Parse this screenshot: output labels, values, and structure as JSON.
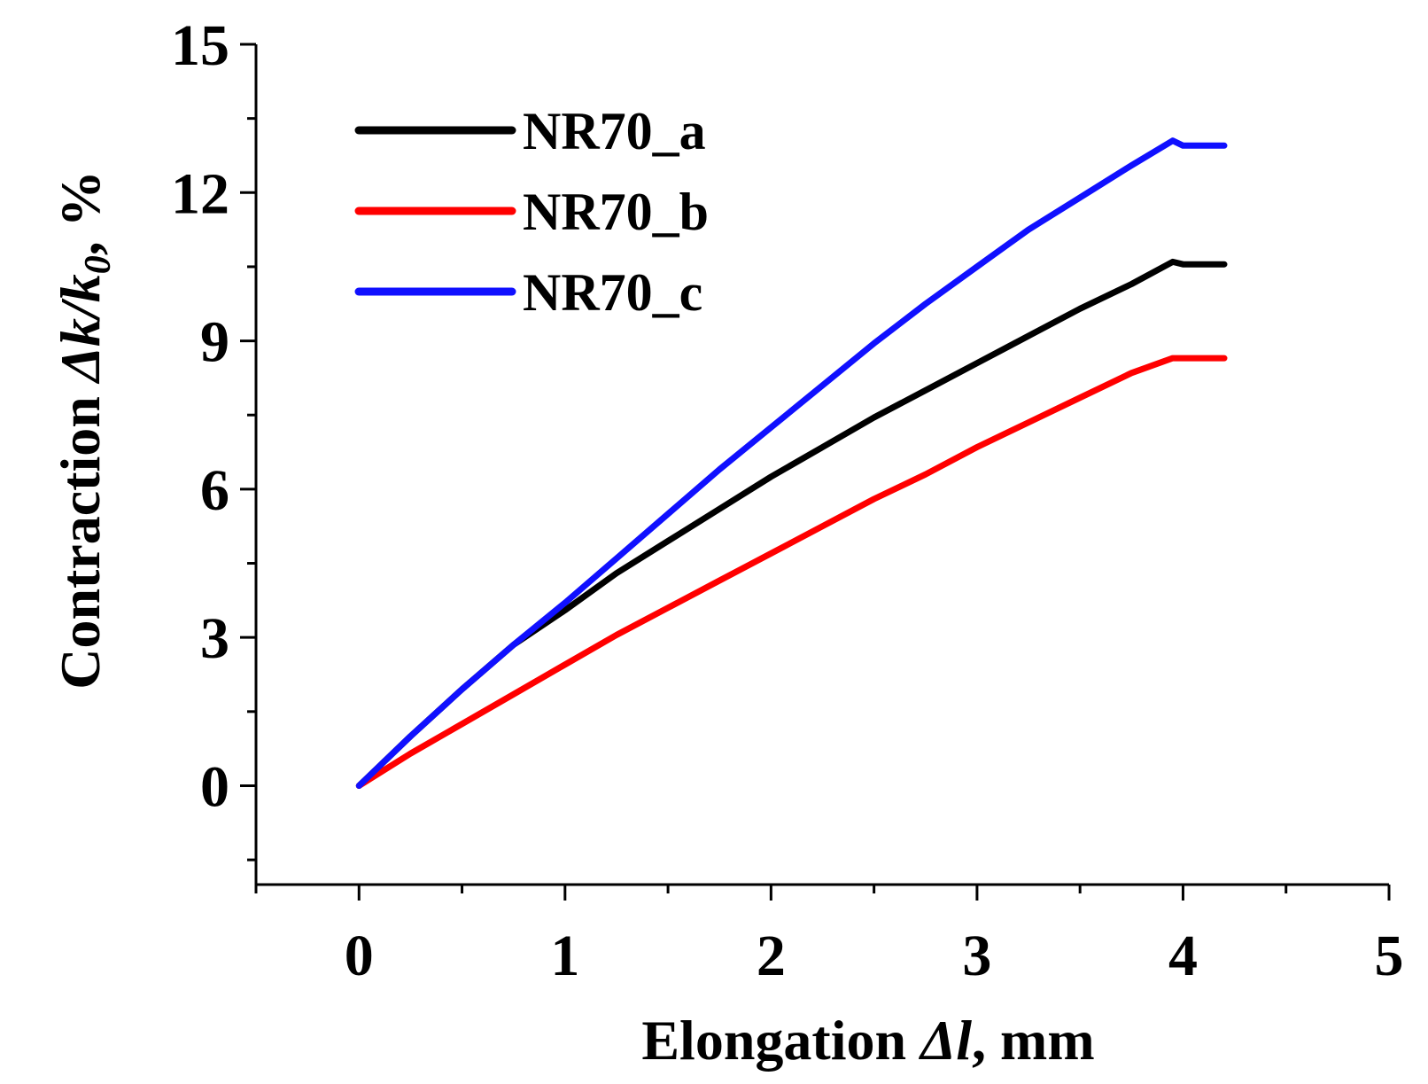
{
  "chart_data": {
    "type": "line",
    "title": "",
    "xlabel": "Elongation Δl, mm",
    "xlabel_parts": [
      "Elongation ",
      "Δl",
      ", mm"
    ],
    "ylabel": "Contraction Δk/k0, %",
    "ylabel_parts": [
      "Contraction ",
      "Δk/k",
      "0",
      ", %"
    ],
    "xlim": [
      -0.5,
      5
    ],
    "ylim": [
      -2,
      15
    ],
    "x_ticks": [
      0,
      1,
      2,
      3,
      4,
      5
    ],
    "y_ticks": [
      0,
      3,
      6,
      9,
      12,
      15
    ],
    "x_minor_ticks": [
      -0.5,
      0.5,
      1.5,
      2.5,
      3.5,
      4.5
    ],
    "y_minor_ticks": [
      -1.5,
      1.5,
      4.5,
      7.5,
      10.5,
      13.5
    ],
    "grid": false,
    "legend_position": "top-left",
    "series": [
      {
        "name": "NR70_a",
        "color": "#000000",
        "x": [
          0,
          0.25,
          0.5,
          0.75,
          1.0,
          1.25,
          1.5,
          1.75,
          2.0,
          2.25,
          2.5,
          2.75,
          3.0,
          3.25,
          3.5,
          3.75,
          3.95,
          4.0,
          4.2
        ],
        "y": [
          0,
          1.0,
          1.95,
          2.85,
          3.55,
          4.3,
          4.95,
          5.6,
          6.25,
          6.85,
          7.45,
          8.0,
          8.55,
          9.1,
          9.65,
          10.15,
          10.6,
          10.55,
          10.55
        ]
      },
      {
        "name": "NR70_b",
        "color": "#ff0000",
        "x": [
          0,
          0.25,
          0.5,
          0.75,
          1.0,
          1.25,
          1.5,
          1.75,
          2.0,
          2.25,
          2.5,
          2.75,
          3.0,
          3.25,
          3.5,
          3.75,
          3.95,
          4.0,
          4.2
        ],
        "y": [
          0,
          0.65,
          1.25,
          1.85,
          2.45,
          3.05,
          3.6,
          4.15,
          4.7,
          5.25,
          5.8,
          6.3,
          6.85,
          7.35,
          7.85,
          8.35,
          8.65,
          8.65,
          8.65
        ]
      },
      {
        "name": "NR70_c",
        "color": "#1010ff",
        "x": [
          0,
          0.25,
          0.5,
          0.75,
          1.0,
          1.25,
          1.5,
          1.75,
          2.0,
          2.25,
          2.5,
          2.75,
          3.0,
          3.25,
          3.5,
          3.75,
          3.95,
          4.0,
          4.2
        ],
        "y": [
          0,
          1.0,
          1.95,
          2.85,
          3.7,
          4.6,
          5.5,
          6.4,
          7.25,
          8.1,
          8.95,
          9.75,
          10.5,
          11.25,
          11.9,
          12.55,
          13.05,
          12.95,
          12.95
        ]
      }
    ]
  }
}
